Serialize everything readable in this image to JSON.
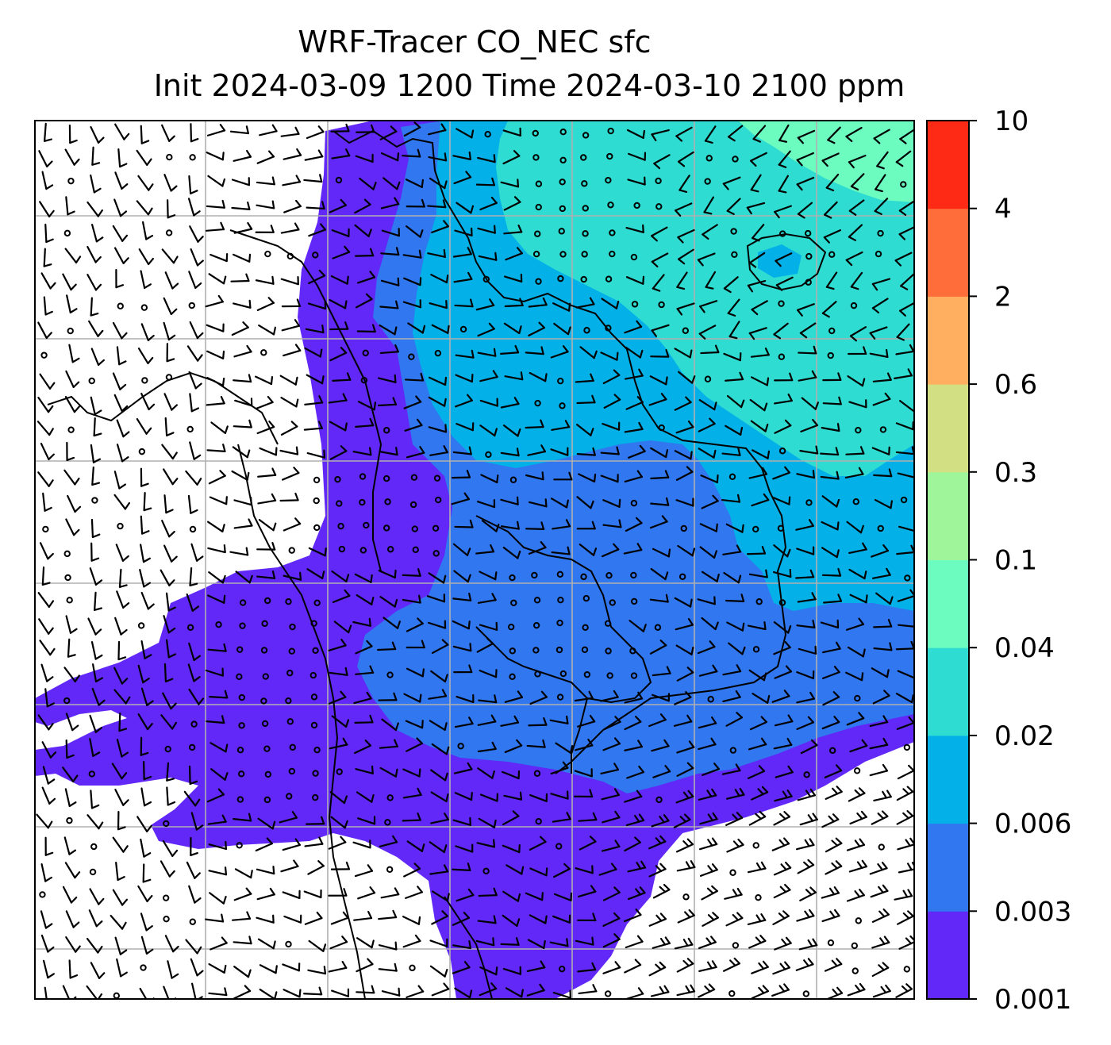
{
  "map": {
    "title_line1": "WRF-Tracer CO_NEC sfc",
    "title_line2": "Init 2024-03-09 1200 Time 2024-03-10 2100 ppm",
    "gridlines": true
  },
  "colorbar": {
    "tick_labels": [
      "0.001",
      "0.003",
      "0.006",
      "0.02",
      "0.04",
      "0.1",
      "0.3",
      "0.6",
      "2",
      "4",
      "10"
    ],
    "colors": [
      "#6128f7",
      "#3077f0",
      "#03b1e8",
      "#2edcd2",
      "#6cfcc0",
      "#9ef59a",
      "#d2df82",
      "#ffaf5f",
      "#ff6d3b",
      "#ff2a16"
    ]
  },
  "legend_semantics": {
    "fill": "CO_NEC tracer concentration (ppm)",
    "symbols": [
      "wind-barb",
      "calm-circle"
    ]
  }
}
